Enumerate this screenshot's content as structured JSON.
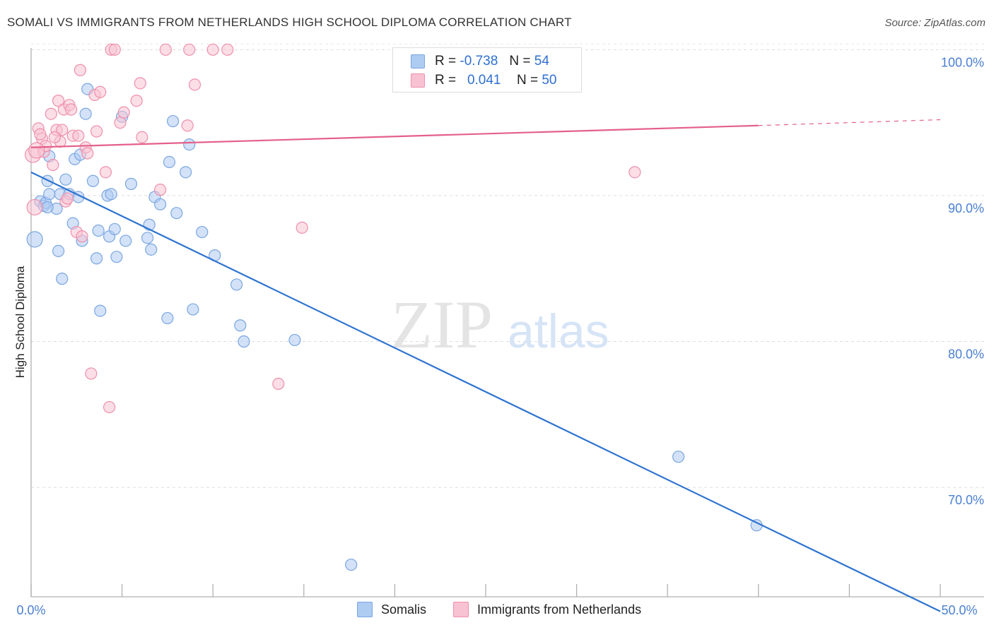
{
  "title": "SOMALI VS IMMIGRANTS FROM NETHERLANDS HIGH SCHOOL DIPLOMA CORRELATION CHART",
  "source": "Source: ZipAtlas.com",
  "watermark": {
    "zip": "ZIP",
    "atlas": "atlas"
  },
  "legend": {
    "rows": [
      {
        "r_label": "R = ",
        "r_value": "-0.738",
        "n_label": "N = ",
        "n_value": "54",
        "color": "#aecbf2",
        "border": "#7aa6e0"
      },
      {
        "r_label": "R = ",
        "r_value": "0.041",
        "n_label": "N = ",
        "n_value": "50",
        "color": "#f8c2d2",
        "border": "#ee8fac"
      }
    ]
  },
  "bottom_legend": [
    {
      "label": "Somalis",
      "color": "#aecbf2"
    },
    {
      "label": "Immigrants from Netherlands",
      "color": "#f8c2d2"
    }
  ],
  "chart_data": {
    "type": "scatter",
    "title": "SOMALI VS IMMIGRANTS FROM NETHERLANDS HIGH SCHOOL DIPLOMA CORRELATION CHART",
    "xlabel": "",
    "ylabel": "High School Diploma",
    "xlim": [
      0,
      50
    ],
    "ylim": [
      62.5,
      100.5
    ],
    "x_tick_labels": [
      "0.0%",
      "50.0%"
    ],
    "y_ticks": [
      70,
      80,
      90,
      100
    ],
    "y_tick_labels": [
      "70.0%",
      "80.0%",
      "90.0%",
      "100.0%"
    ],
    "grid": true,
    "legend_position": "top-center",
    "series": [
      {
        "name": "Somalis",
        "color": "#aecbf2",
        "stroke": "#7aa6e0",
        "line_color": "#2f74d0",
        "trend": {
          "x0": 0,
          "y0": 91.6,
          "x1": 50,
          "y1": 61.5
        },
        "points": [
          [
            0.2,
            87.0
          ],
          [
            0.5,
            89.6
          ],
          [
            0.7,
            89.3
          ],
          [
            0.8,
            89.5
          ],
          [
            0.9,
            91.0
          ],
          [
            1.0,
            90.1
          ],
          [
            1.0,
            92.7
          ],
          [
            1.4,
            89.1
          ],
          [
            1.5,
            86.2
          ],
          [
            1.6,
            90.1
          ],
          [
            1.7,
            84.3
          ],
          [
            1.9,
            91.1
          ],
          [
            2.1,
            90.1
          ],
          [
            2.3,
            88.1
          ],
          [
            2.4,
            92.5
          ],
          [
            2.6,
            89.9
          ],
          [
            2.7,
            92.8
          ],
          [
            2.8,
            86.9
          ],
          [
            3.0,
            95.6
          ],
          [
            3.1,
            97.3
          ],
          [
            3.4,
            91.0
          ],
          [
            3.6,
            85.7
          ],
          [
            3.7,
            87.6
          ],
          [
            3.8,
            82.1
          ],
          [
            4.2,
            90.0
          ],
          [
            4.3,
            87.2
          ],
          [
            4.4,
            90.1
          ],
          [
            4.6,
            87.7
          ],
          [
            4.7,
            85.8
          ],
          [
            5.0,
            95.4
          ],
          [
            5.2,
            86.9
          ],
          [
            5.5,
            90.8
          ],
          [
            6.4,
            87.1
          ],
          [
            6.5,
            88.0
          ],
          [
            6.6,
            86.3
          ],
          [
            6.8,
            89.9
          ],
          [
            7.1,
            89.4
          ],
          [
            7.5,
            81.6
          ],
          [
            7.6,
            92.3
          ],
          [
            7.8,
            95.1
          ],
          [
            8.0,
            88.8
          ],
          [
            8.5,
            91.6
          ],
          [
            8.7,
            93.5
          ],
          [
            8.9,
            82.2
          ],
          [
            9.4,
            87.5
          ],
          [
            10.1,
            85.9
          ],
          [
            11.3,
            83.9
          ],
          [
            11.5,
            81.1
          ],
          [
            11.7,
            80.0
          ],
          [
            14.5,
            80.1
          ],
          [
            17.6,
            64.7
          ],
          [
            35.6,
            72.1
          ],
          [
            39.9,
            67.4
          ],
          [
            0.9,
            89.2
          ]
        ]
      },
      {
        "name": "Immigrants from Netherlands",
        "color": "#f8c2d2",
        "stroke": "#ee8fac",
        "line_color": "#e4608a",
        "trend": {
          "x0": 0,
          "y0": 93.3,
          "x1": 40,
          "y1": 94.8
        },
        "trend_dashed_to": {
          "x": 50,
          "y": 95.2
        },
        "points": [
          [
            0.1,
            92.8
          ],
          [
            0.2,
            89.2
          ],
          [
            0.4,
            94.6
          ],
          [
            0.6,
            93.9
          ],
          [
            0.7,
            93.0
          ],
          [
            0.8,
            93.4
          ],
          [
            1.1,
            95.6
          ],
          [
            1.2,
            92.1
          ],
          [
            1.4,
            94.5
          ],
          [
            1.5,
            96.5
          ],
          [
            1.6,
            93.7
          ],
          [
            1.7,
            94.5
          ],
          [
            1.8,
            95.9
          ],
          [
            1.9,
            89.6
          ],
          [
            2.1,
            96.2
          ],
          [
            2.2,
            95.9
          ],
          [
            2.3,
            94.1
          ],
          [
            2.5,
            87.5
          ],
          [
            2.6,
            94.1
          ],
          [
            2.7,
            98.6
          ],
          [
            2.8,
            87.2
          ],
          [
            3.0,
            93.3
          ],
          [
            3.1,
            92.9
          ],
          [
            3.3,
            77.8
          ],
          [
            3.5,
            96.9
          ],
          [
            3.6,
            94.4
          ],
          [
            3.8,
            97.1
          ],
          [
            4.1,
            91.6
          ],
          [
            4.3,
            75.5
          ],
          [
            4.4,
            100.0
          ],
          [
            4.6,
            100.0
          ],
          [
            4.9,
            95.0
          ],
          [
            5.1,
            95.7
          ],
          [
            5.8,
            96.5
          ],
          [
            6.0,
            97.7
          ],
          [
            6.1,
            94.0
          ],
          [
            7.1,
            90.4
          ],
          [
            7.4,
            100.0
          ],
          [
            8.6,
            94.8
          ],
          [
            8.7,
            100.0
          ],
          [
            9.0,
            97.6
          ],
          [
            10.0,
            100.0
          ],
          [
            10.8,
            100.0
          ],
          [
            13.6,
            77.1
          ],
          [
            14.9,
            87.8
          ],
          [
            33.2,
            91.6
          ],
          [
            1.3,
            94.0
          ],
          [
            0.5,
            94.2
          ],
          [
            2.0,
            89.8
          ],
          [
            0.3,
            93.1
          ]
        ]
      }
    ]
  }
}
